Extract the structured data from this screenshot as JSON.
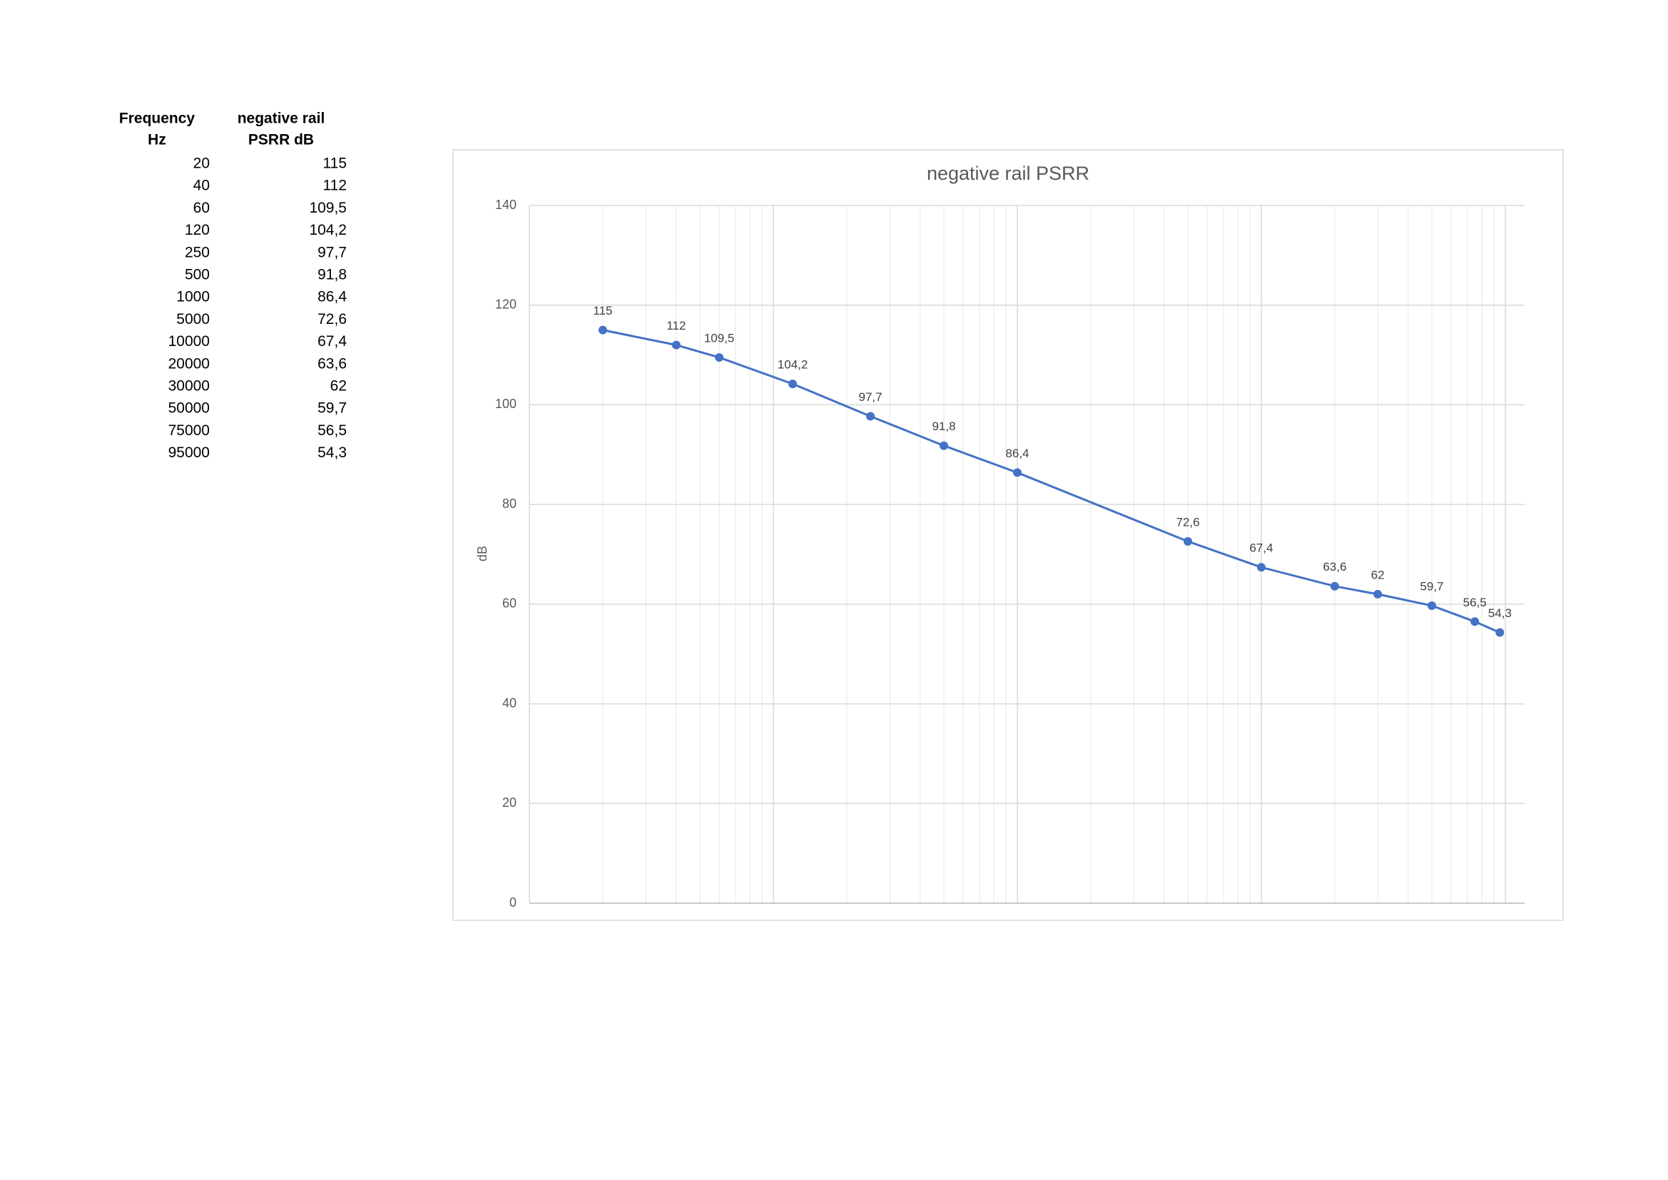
{
  "table": {
    "headers": [
      [
        "Frequency",
        "Hz"
      ],
      [
        "negative rail",
        "PSRR dB"
      ]
    ]
  },
  "chart_data": {
    "type": "line",
    "title": "negative rail PSRR",
    "y_label": "dB",
    "x": [
      20,
      40,
      60,
      120,
      250,
      500,
      1000,
      5000,
      10000,
      20000,
      30000,
      50000,
      75000,
      95000
    ],
    "series": [
      {
        "name": "negative rail PSRR dB",
        "color": "#4472c4",
        "values": [
          115,
          112,
          109.5,
          104.2,
          97.7,
          91.8,
          86.4,
          72.6,
          67.4,
          63.6,
          62,
          59.7,
          56.5,
          54.3
        ],
        "value_labels": [
          "115",
          "112",
          "109,5",
          "104,2",
          "97,7",
          "91,8",
          "86,4",
          "72,6",
          "67,4",
          "63,6",
          "62",
          "59,7",
          "56,5",
          "54,3"
        ]
      }
    ],
    "xlim": [
      10,
      120000
    ],
    "x_log": true,
    "ylim": [
      0,
      140
    ],
    "yticks": [
      0,
      20,
      40,
      60,
      80,
      100,
      120,
      140
    ],
    "grid": true
  }
}
